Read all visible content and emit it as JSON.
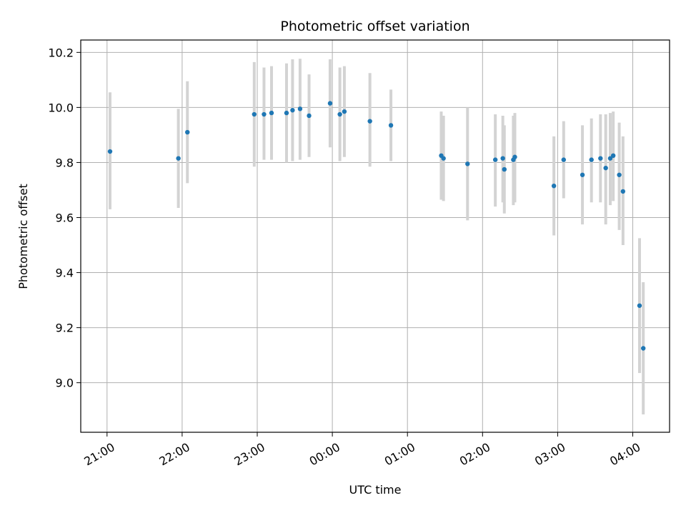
{
  "chart_data": {
    "type": "scatter",
    "title": "Photometric offset variation",
    "xlabel": "UTC time",
    "ylabel": "Photometric offset",
    "grid": true,
    "legend": "none",
    "xlim_hours": [
      20.65,
      28.49
    ],
    "ylim": [
      8.82,
      10.245
    ],
    "x_ticks": [
      {
        "hour": 21,
        "label": "21:00"
      },
      {
        "hour": 22,
        "label": "22:00"
      },
      {
        "hour": 23,
        "label": "23:00"
      },
      {
        "hour": 24,
        "label": "00:00"
      },
      {
        "hour": 25,
        "label": "01:00"
      },
      {
        "hour": 26,
        "label": "02:00"
      },
      {
        "hour": 27,
        "label": "03:00"
      },
      {
        "hour": 28,
        "label": "04:00"
      }
    ],
    "y_ticks": [
      {
        "value": 9.0,
        "label": "9.0"
      },
      {
        "value": 9.2,
        "label": "9.2"
      },
      {
        "value": 9.4,
        "label": "9.4"
      },
      {
        "value": 9.6,
        "label": "9.6"
      },
      {
        "value": 9.8,
        "label": "9.8"
      },
      {
        "value": 10.0,
        "label": "10.0"
      },
      {
        "value": 10.2,
        "label": "10.2"
      }
    ],
    "colors": {
      "point": "#1f77b4",
      "errorbar": "#d3d3d3",
      "grid": "#b0b0b0",
      "axes": "#000000"
    },
    "points": [
      {
        "time": "21:02",
        "x": 21.04,
        "y": 9.84,
        "y_low": 9.63,
        "y_high": 10.055
      },
      {
        "time": "21:57",
        "x": 21.95,
        "y": 9.815,
        "y_low": 9.635,
        "y_high": 9.995
      },
      {
        "time": "22:04",
        "x": 22.07,
        "y": 9.91,
        "y_low": 9.725,
        "y_high": 10.095
      },
      {
        "time": "22:57",
        "x": 22.96,
        "y": 9.975,
        "y_low": 9.785,
        "y_high": 10.165
      },
      {
        "time": "23:05",
        "x": 23.09,
        "y": 9.975,
        "y_low": 9.81,
        "y_high": 10.145
      },
      {
        "time": "23:11",
        "x": 23.19,
        "y": 9.98,
        "y_low": 9.81,
        "y_high": 10.15
      },
      {
        "time": "23:23",
        "x": 23.39,
        "y": 9.98,
        "y_low": 9.8,
        "y_high": 10.16
      },
      {
        "time": "23:28",
        "x": 23.47,
        "y": 9.99,
        "y_low": 9.805,
        "y_high": 10.175
      },
      {
        "time": "23:34",
        "x": 23.57,
        "y": 9.995,
        "y_low": 9.81,
        "y_high": 10.177
      },
      {
        "time": "23:41",
        "x": 23.69,
        "y": 9.97,
        "y_low": 9.82,
        "y_high": 10.12
      },
      {
        "time": "23:58",
        "x": 23.97,
        "y": 10.015,
        "y_low": 9.855,
        "y_high": 10.175
      },
      {
        "time": "00:06",
        "x": 24.1,
        "y": 9.975,
        "y_low": 9.805,
        "y_high": 10.145
      },
      {
        "time": "00:10",
        "x": 24.16,
        "y": 9.985,
        "y_low": 9.82,
        "y_high": 10.15
      },
      {
        "time": "00:30",
        "x": 24.5,
        "y": 9.95,
        "y_low": 9.785,
        "y_high": 10.125
      },
      {
        "time": "00:47",
        "x": 24.78,
        "y": 9.935,
        "y_low": 9.805,
        "y_high": 10.065
      },
      {
        "time": "01:27",
        "x": 25.45,
        "y": 9.825,
        "y_low": 9.665,
        "y_high": 9.985
      },
      {
        "time": "01:29",
        "x": 25.48,
        "y": 9.815,
        "y_low": 9.66,
        "y_high": 9.97
      },
      {
        "time": "01:48",
        "x": 25.8,
        "y": 9.795,
        "y_low": 9.59,
        "y_high": 10.0
      },
      {
        "time": "02:10",
        "x": 26.17,
        "y": 9.81,
        "y_low": 9.64,
        "y_high": 9.975
      },
      {
        "time": "02:16",
        "x": 26.27,
        "y": 9.815,
        "y_low": 9.655,
        "y_high": 9.97
      },
      {
        "time": "02:17",
        "x": 26.29,
        "y": 9.775,
        "y_low": 9.615,
        "y_high": 9.935
      },
      {
        "time": "02:24",
        "x": 26.41,
        "y": 9.81,
        "y_low": 9.645,
        "y_high": 9.97
      },
      {
        "time": "02:26",
        "x": 26.43,
        "y": 9.82,
        "y_low": 9.655,
        "y_high": 9.98
      },
      {
        "time": "02:57",
        "x": 26.95,
        "y": 9.715,
        "y_low": 9.535,
        "y_high": 9.895
      },
      {
        "time": "03:05",
        "x": 27.08,
        "y": 9.81,
        "y_low": 9.67,
        "y_high": 9.95
      },
      {
        "time": "03:20",
        "x": 27.33,
        "y": 9.755,
        "y_low": 9.575,
        "y_high": 9.935
      },
      {
        "time": "03:27",
        "x": 27.45,
        "y": 9.81,
        "y_low": 9.655,
        "y_high": 9.96
      },
      {
        "time": "03:34",
        "x": 27.57,
        "y": 9.815,
        "y_low": 9.655,
        "y_high": 9.975
      },
      {
        "time": "03:38",
        "x": 27.64,
        "y": 9.78,
        "y_low": 9.575,
        "y_high": 9.975
      },
      {
        "time": "03:42",
        "x": 27.7,
        "y": 9.815,
        "y_low": 9.645,
        "y_high": 9.98
      },
      {
        "time": "03:44",
        "x": 27.74,
        "y": 9.825,
        "y_low": 9.66,
        "y_high": 9.985
      },
      {
        "time": "03:49",
        "x": 27.82,
        "y": 9.755,
        "y_low": 9.555,
        "y_high": 9.945
      },
      {
        "time": "03:52",
        "x": 27.87,
        "y": 9.695,
        "y_low": 9.5,
        "y_high": 9.895
      },
      {
        "time": "04:05",
        "x": 28.09,
        "y": 9.28,
        "y_low": 9.035,
        "y_high": 9.525
      },
      {
        "time": "04:08",
        "x": 28.14,
        "y": 9.125,
        "y_low": 8.885,
        "y_high": 9.365
      }
    ]
  }
}
